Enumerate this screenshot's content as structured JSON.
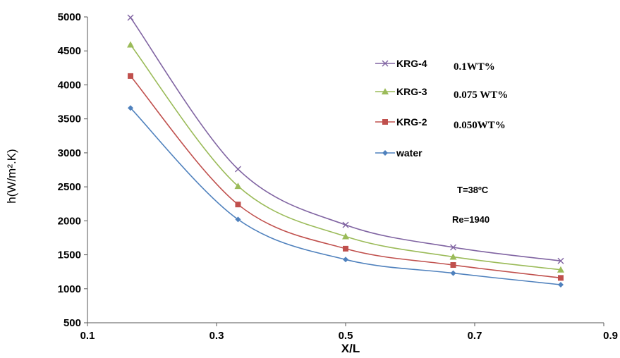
{
  "chart_data": {
    "type": "line",
    "xlabel": "X/L",
    "ylabel": "h(W/m².K)",
    "xlim": [
      0.1,
      0.9
    ],
    "ylim": [
      500,
      5000
    ],
    "xticks": [
      "0.1",
      "0.3",
      "0.5",
      "0.7",
      "0.9"
    ],
    "xtick_values": [
      0.1,
      0.3,
      0.5,
      0.7,
      0.9
    ],
    "yticks": [
      "500",
      "1000",
      "1500",
      "2000",
      "2500",
      "3000",
      "3500",
      "4000",
      "4500",
      "5000"
    ],
    "ytick_values": [
      500,
      1000,
      1500,
      2000,
      2500,
      3000,
      3500,
      4000,
      4500,
      5000
    ],
    "x": [
      0.1667,
      0.3333,
      0.5,
      0.6667,
      0.8333
    ],
    "series": [
      {
        "name": "KRG-4",
        "concentration": "0.1WT%",
        "color": "#8064a2",
        "marker": "x",
        "values": [
          4990,
          2760,
          1940,
          1610,
          1410
        ]
      },
      {
        "name": "KRG-3",
        "concentration": "0.075 WT%",
        "color": "#9bbb59",
        "marker": "triangle",
        "values": [
          4590,
          2510,
          1770,
          1470,
          1280
        ]
      },
      {
        "name": "KRG-2",
        "concentration": "0.050WT%",
        "color": "#c0504d",
        "marker": "square",
        "values": [
          4130,
          2240,
          1590,
          1350,
          1160
        ]
      },
      {
        "name": "water",
        "concentration": "",
        "color": "#4f81bd",
        "marker": "diamond",
        "values": [
          3660,
          2020,
          1430,
          1230,
          1060
        ]
      }
    ],
    "annotations": [
      "T=38ºC",
      "Re=1940"
    ],
    "grid": false,
    "legend_position": "inside-right"
  }
}
